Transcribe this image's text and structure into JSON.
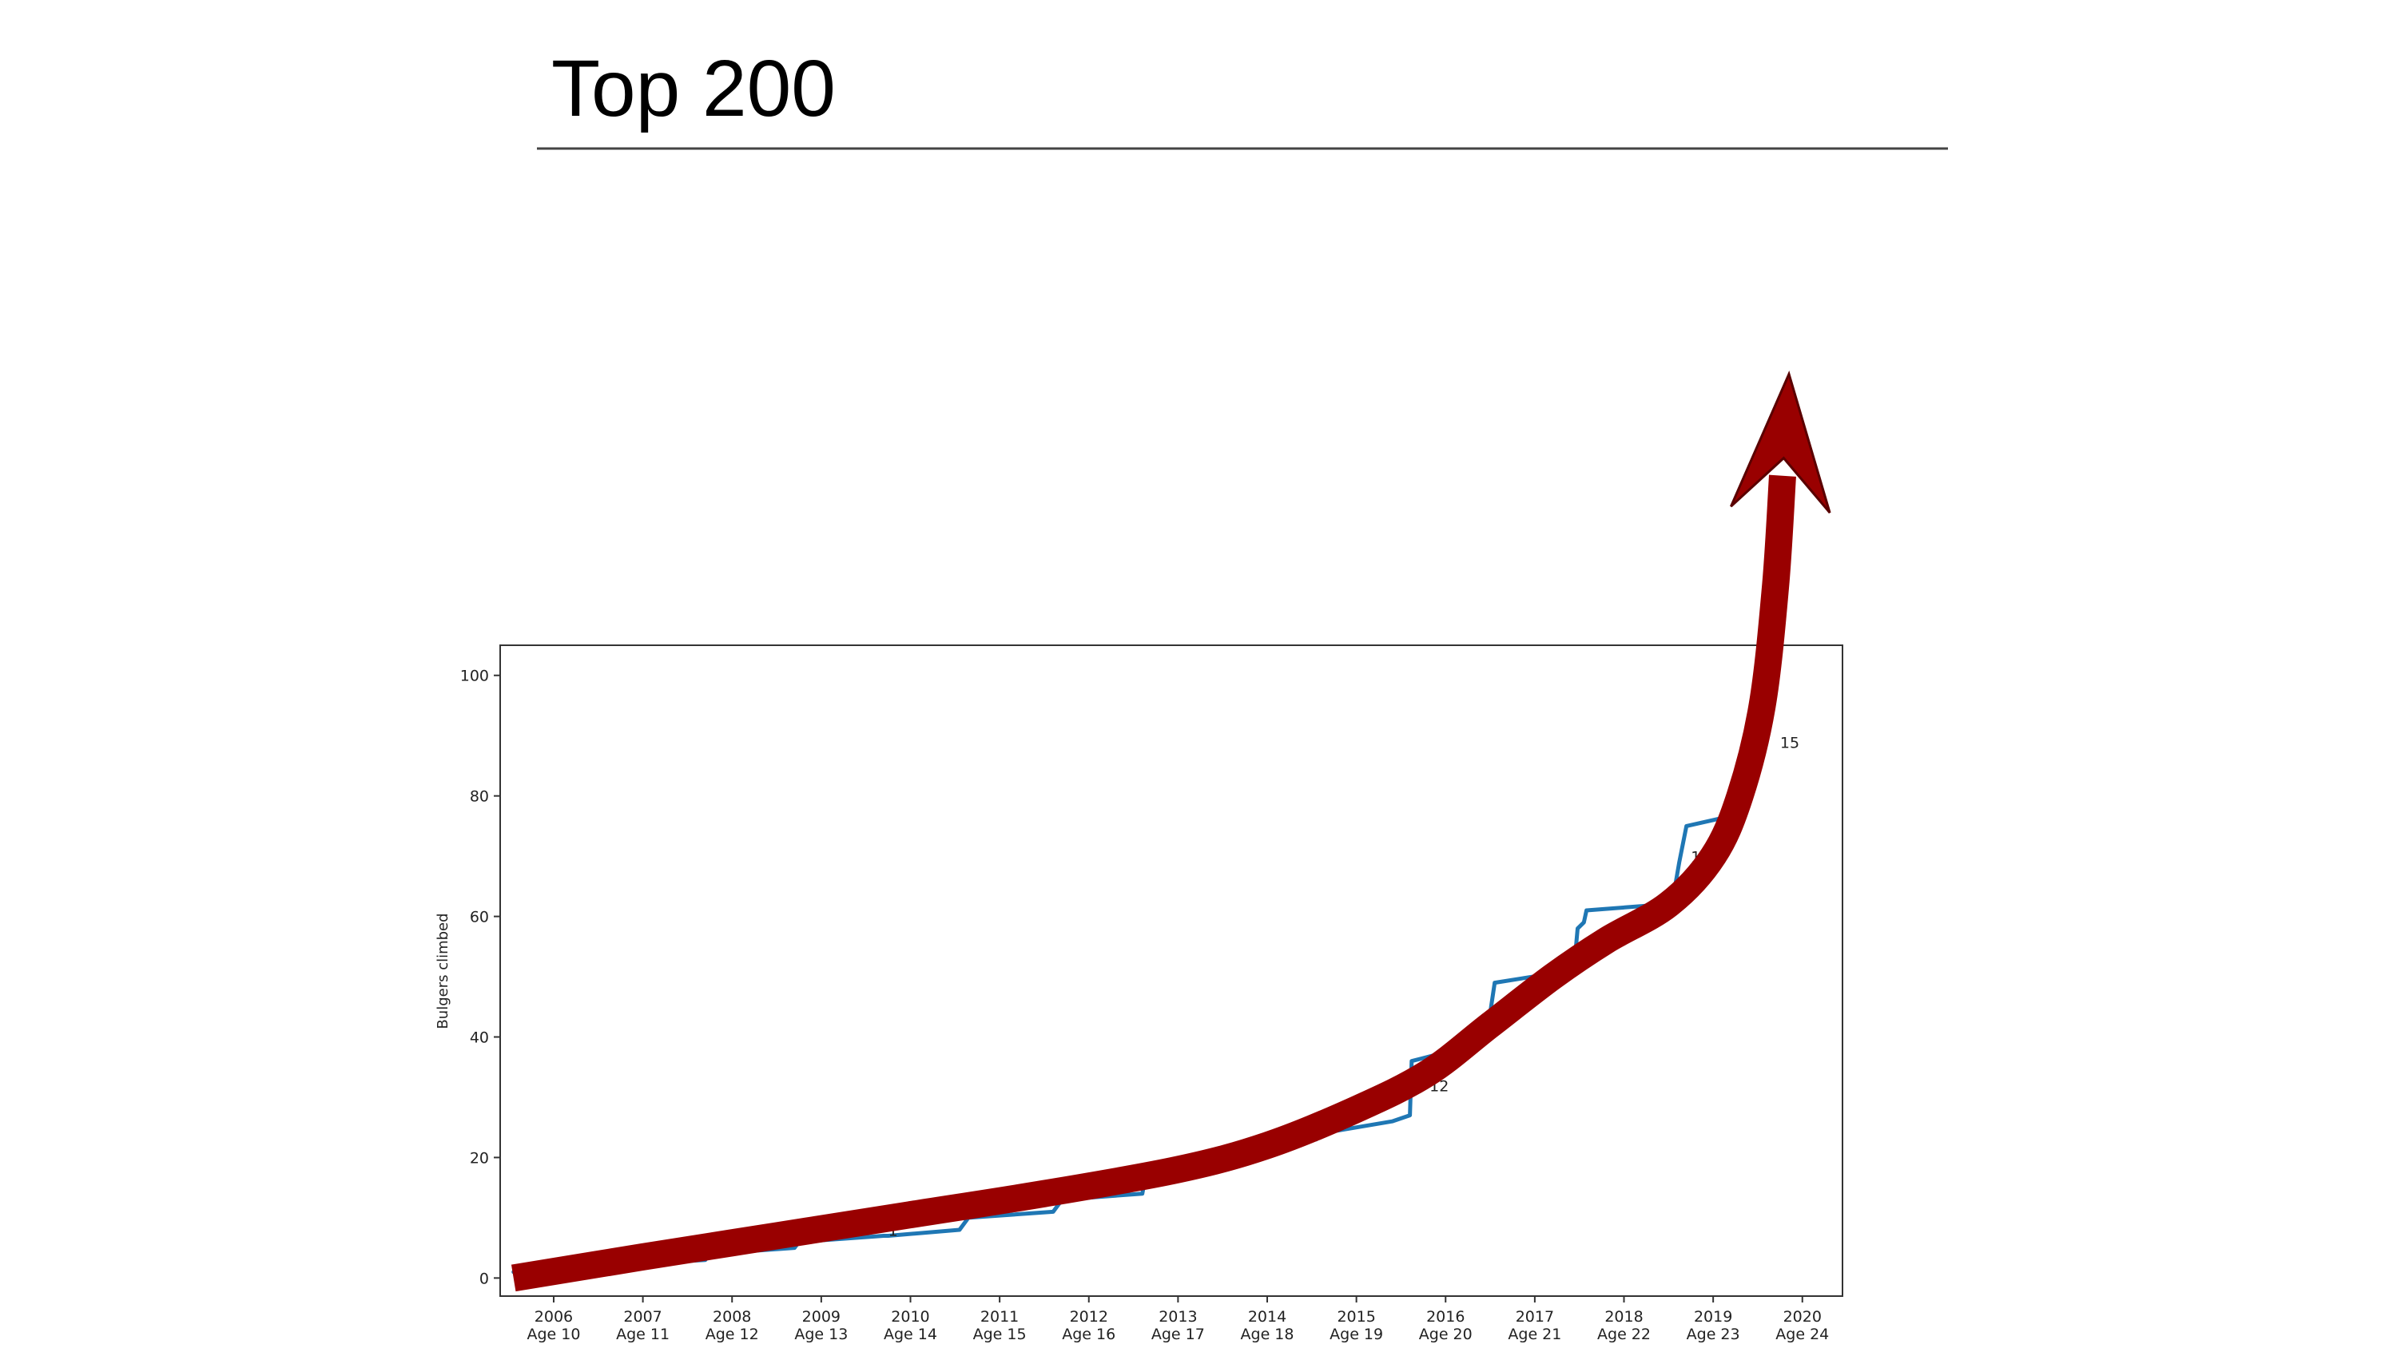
{
  "slide": {
    "title": "Top 200"
  },
  "chart_data": {
    "type": "line",
    "title": "",
    "xlabel": "",
    "ylabel": "Bulgers climbed",
    "ylim": [
      -3,
      105
    ],
    "xlim": [
      2005.4,
      2020.45
    ],
    "grid": false,
    "legend": "none",
    "yticks": [
      0,
      20,
      40,
      60,
      80,
      100
    ],
    "xticks": [
      {
        "x": 2006,
        "year": "2006",
        "age": "Age 10"
      },
      {
        "x": 2007,
        "year": "2007",
        "age": "Age 11"
      },
      {
        "x": 2008,
        "year": "2008",
        "age": "Age 12"
      },
      {
        "x": 2009,
        "year": "2009",
        "age": "Age 13"
      },
      {
        "x": 2010,
        "year": "2010",
        "age": "Age 14"
      },
      {
        "x": 2011,
        "year": "2011",
        "age": "Age 15"
      },
      {
        "x": 2012,
        "year": "2012",
        "age": "Age 16"
      },
      {
        "x": 2013,
        "year": "2013",
        "age": "Age 17"
      },
      {
        "x": 2014,
        "year": "2014",
        "age": "Age 18"
      },
      {
        "x": 2015,
        "year": "2015",
        "age": "Age 19"
      },
      {
        "x": 2016,
        "year": "2016",
        "age": "Age 20"
      },
      {
        "x": 2017,
        "year": "2017",
        "age": "Age 21"
      },
      {
        "x": 2018,
        "year": "2018",
        "age": "Age 22"
      },
      {
        "x": 2019,
        "year": "2019",
        "age": "Age 23"
      },
      {
        "x": 2020,
        "year": "2020",
        "age": "Age 24"
      }
    ],
    "series": [
      {
        "color": "#1f77b4",
        "x": [
          2005.55,
          2005.8,
          2006.5,
          2007.7,
          2007.75,
          2008.7,
          2008.75,
          2009.7,
          2009.75,
          2010.55,
          2010.65,
          2011.6,
          2011.7,
          2012.6,
          2012.65,
          2013.6,
          2013.65,
          2014.55,
          2014.6,
          2015.4,
          2015.6,
          2015.62,
          2016.4,
          2016.5,
          2016.55,
          2017.4,
          2017.45,
          2017.48,
          2017.55,
          2017.58,
          2018.45,
          2018.55,
          2018.62,
          2018.7,
          2019.3,
          2019.5,
          2019.55,
          2019.6,
          2019.62,
          2019.68
        ],
        "y": [
          1,
          1,
          2,
          3,
          4,
          5,
          6,
          7,
          7,
          8,
          10,
          11,
          13,
          14,
          18,
          19,
          22,
          23,
          24,
          26,
          27,
          36,
          39,
          44,
          49,
          51,
          53,
          58,
          59,
          61,
          62,
          63,
          69,
          75,
          77,
          84,
          88,
          93,
          95,
          100
        ]
      }
    ],
    "annotations": [
      {
        "text": "1",
        "x": 2009.75,
        "y": 7
      },
      {
        "text": "12",
        "x": 2015.82,
        "y": 31
      },
      {
        "text": "1",
        "x": 2017.72,
        "y": 55
      },
      {
        "text": "14",
        "x": 2018.75,
        "y": 69
      },
      {
        "text": "15",
        "x": 2019.75,
        "y": 88
      }
    ],
    "trend_arrow": {
      "color": "#990000",
      "x": [
        2005.55,
        2007.0,
        2008.5,
        2010.0,
        2011.5,
        2013.0,
        2014.0,
        2015.0,
        2015.8,
        2016.5,
        2017.2,
        2017.8,
        2018.5,
        2019.0,
        2019.3,
        2019.55,
        2019.7,
        2019.85
      ],
      "y": [
        0,
        3.5,
        7,
        10.5,
        14,
        18,
        22,
        28,
        34,
        42,
        50,
        56,
        62,
        70,
        80,
        95,
        115,
        150
      ]
    }
  }
}
